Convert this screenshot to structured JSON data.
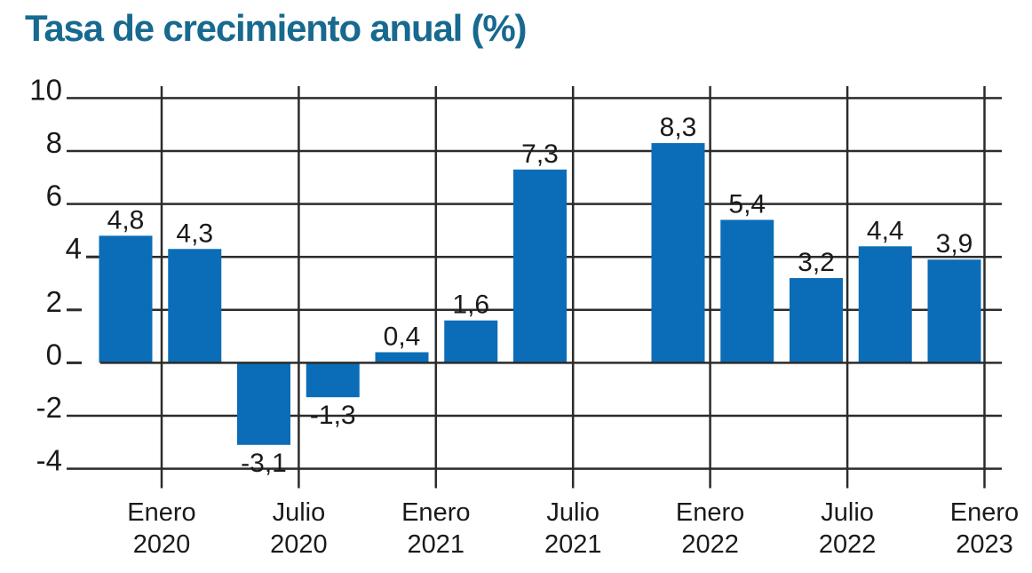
{
  "title": "Tasa de crecimiento anual (%)",
  "chart_data": {
    "type": "bar",
    "title": "Tasa de crecimiento anual (%)",
    "value_unit": "%",
    "decimal_separator": "comma",
    "colors": {
      "background": "#ffffff",
      "title": "#17698f",
      "bar": "#0b6db7",
      "grid": "#2b2b2b",
      "text": "#1a1a1a"
    },
    "ylim": [
      -4,
      10
    ],
    "y_ticks": [
      10,
      8,
      6,
      4,
      2,
      0,
      -2,
      -4
    ],
    "x_tick_labels": [
      {
        "line1": "Enero",
        "line2": "2020"
      },
      {
        "line1": "Julio",
        "line2": "2020"
      },
      {
        "line1": "Enero",
        "line2": "2021"
      },
      {
        "line1": "Julio",
        "line2": "2021"
      },
      {
        "line1": "Enero",
        "line2": "2022"
      },
      {
        "line1": "Julio",
        "line2": "2022"
      },
      {
        "line1": "Enero",
        "line2": "2023"
      }
    ],
    "total_slots": 13,
    "empty_slots": [
      8
    ],
    "bars": [
      {
        "slot": 1,
        "value": 4.8,
        "label": "4,8"
      },
      {
        "slot": 2,
        "value": 4.3,
        "label": "4,3"
      },
      {
        "slot": 3,
        "value": -3.1,
        "label": "-3,1"
      },
      {
        "slot": 4,
        "value": -1.3,
        "label": "-1,3"
      },
      {
        "slot": 5,
        "value": 0.4,
        "label": "0,4"
      },
      {
        "slot": 6,
        "value": 1.6,
        "label": "1,6"
      },
      {
        "slot": 7,
        "value": 7.3,
        "label": "7,3"
      },
      {
        "slot": 9,
        "value": 8.3,
        "label": "8,3"
      },
      {
        "slot": 10,
        "value": 5.4,
        "label": "5,4"
      },
      {
        "slot": 11,
        "value": 3.2,
        "label": "3,2"
      },
      {
        "slot": 12,
        "value": 4.4,
        "label": "4,4"
      },
      {
        "slot": 13,
        "value": 3.9,
        "label": "3,9"
      }
    ],
    "grid": true,
    "legend": false
  }
}
